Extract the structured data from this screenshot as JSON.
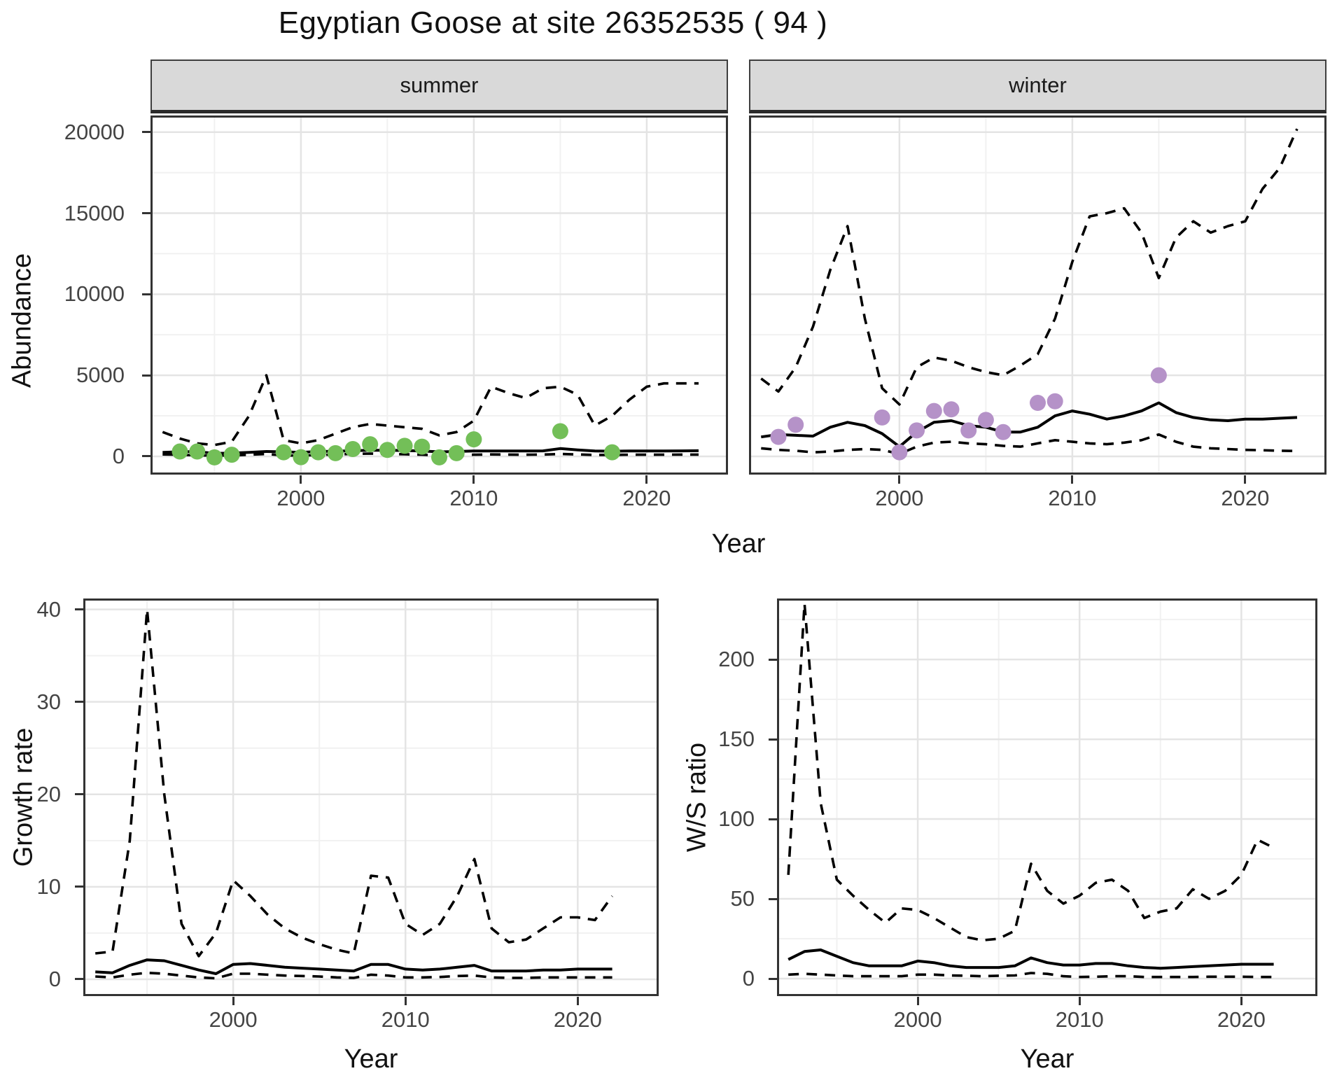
{
  "title": "Egyptian Goose at site 26352535 ( 94 )",
  "species": "Egyptian Goose",
  "site_id": "26352535",
  "title_suffix_number": "94",
  "facets": {
    "summer": "summer",
    "winter": "winter"
  },
  "axes": {
    "x_label": "Year",
    "abundance_label": "Abundance",
    "growth_label": "Growth rate",
    "ws_label": "W/S ratio"
  },
  "colors": {
    "summer_points": "#73bf58",
    "winter_points": "#b592c8",
    "line": "#000000",
    "strip_bg": "#d9d9d9",
    "grid_major": "#e4e4e4",
    "grid_minor": "#f1f1f1",
    "panel_border": "#333333",
    "axis_text": "#444444"
  },
  "chart_data": [
    {
      "id": "abundance_summer",
      "type": "line+scatter",
      "title": "summer",
      "xlabel": "Year",
      "ylabel": "Abundance",
      "xlim": [
        1991.3,
        2024.7
      ],
      "ylim": [
        -1124,
        21023
      ],
      "x_ticks": [
        2000,
        2010,
        2020
      ],
      "x_minor": [
        1995,
        2005,
        2015
      ],
      "y_ticks": [
        0,
        5000,
        10000,
        15000,
        20000
      ],
      "y_minor": [
        2500,
        7500,
        12500,
        17500
      ],
      "grid": true,
      "legend": "none",
      "x": [
        1992,
        1993,
        1994,
        1995,
        1996,
        1997,
        1998,
        1999,
        2000,
        2001,
        2002,
        2003,
        2004,
        2005,
        2006,
        2007,
        2008,
        2009,
        2010,
        2011,
        2012,
        2013,
        2014,
        2015,
        2016,
        2017,
        2018,
        2019,
        2020,
        2021,
        2022,
        2023
      ],
      "series": [
        {
          "name": "fit",
          "style": "solid",
          "values": [
            250,
            280,
            300,
            180,
            200,
            250,
            300,
            280,
            250,
            300,
            320,
            350,
            380,
            380,
            360,
            330,
            280,
            300,
            330,
            330,
            330,
            330,
            340,
            480,
            400,
            330,
            320,
            330,
            330,
            330,
            340,
            350
          ]
        },
        {
          "name": "upper_ci",
          "style": "dashed",
          "values": [
            1500,
            1100,
            800,
            700,
            900,
            2500,
            5000,
            1000,
            800,
            1000,
            1400,
            1800,
            2000,
            1900,
            1800,
            1700,
            1300,
            1500,
            2200,
            4300,
            3900,
            3600,
            4200,
            4300,
            3800,
            1900,
            2500,
            3500,
            4300,
            4500,
            4500,
            4500
          ]
        },
        {
          "name": "lower_ci",
          "style": "dashed",
          "values": [
            120,
            100,
            60,
            50,
            60,
            100,
            150,
            60,
            50,
            80,
            120,
            150,
            170,
            150,
            130,
            100,
            60,
            80,
            100,
            120,
            110,
            100,
            110,
            150,
            120,
            90,
            90,
            100,
            100,
            100,
            110,
            110
          ]
        }
      ],
      "points": [
        [
          1993,
          300
        ],
        [
          1994,
          300
        ],
        [
          1995,
          -60
        ],
        [
          1996,
          100
        ],
        [
          1999,
          250
        ],
        [
          2000,
          -50
        ],
        [
          2001,
          250
        ],
        [
          2002,
          200
        ],
        [
          2003,
          450
        ],
        [
          2004,
          750
        ],
        [
          2005,
          400
        ],
        [
          2006,
          650
        ],
        [
          2007,
          600
        ],
        [
          2008,
          -60
        ],
        [
          2009,
          200
        ],
        [
          2010,
          1050
        ],
        [
          2015,
          1550
        ],
        [
          2018,
          250
        ]
      ],
      "point_color": "#73bf58"
    },
    {
      "id": "abundance_winter",
      "type": "line+scatter",
      "title": "winter",
      "xlabel": "Year",
      "ylabel": "Abundance",
      "xlim": [
        1991.3,
        2024.7
      ],
      "ylim": [
        -1124,
        21023
      ],
      "x_ticks": [
        2000,
        2010,
        2020
      ],
      "x_minor": [
        1995,
        2005,
        2015
      ],
      "y_ticks": [
        0,
        5000,
        10000,
        15000,
        20000
      ],
      "y_minor": [
        2500,
        7500,
        12500,
        17500
      ],
      "grid": true,
      "legend": "none",
      "x": [
        1992,
        1993,
        1994,
        1995,
        1996,
        1997,
        1998,
        1999,
        2000,
        2001,
        2002,
        2003,
        2004,
        2005,
        2006,
        2007,
        2008,
        2009,
        2010,
        2011,
        2012,
        2013,
        2014,
        2015,
        2016,
        2017,
        2018,
        2019,
        2020,
        2021,
        2022,
        2023
      ],
      "series": [
        {
          "name": "fit",
          "style": "solid",
          "values": [
            1200,
            1350,
            1300,
            1250,
            1800,
            2100,
            1900,
            1400,
            600,
            1500,
            2100,
            2200,
            1900,
            1800,
            1500,
            1500,
            1800,
            2500,
            2800,
            2600,
            2300,
            2500,
            2800,
            3300,
            2700,
            2400,
            2250,
            2200,
            2300,
            2300,
            2350,
            2400
          ]
        },
        {
          "name": "upper_ci",
          "style": "dashed",
          "values": [
            4800,
            4000,
            5500,
            8000,
            11500,
            14200,
            8500,
            4200,
            3200,
            5500,
            6100,
            5900,
            5500,
            5200,
            5000,
            5600,
            6300,
            8500,
            12000,
            14800,
            15000,
            15300,
            13800,
            11000,
            13500,
            14500,
            13800,
            14200,
            14500,
            16500,
            17800,
            20200
          ]
        },
        {
          "name": "lower_ci",
          "style": "dashed",
          "values": [
            500,
            400,
            350,
            250,
            300,
            400,
            450,
            400,
            150,
            600,
            850,
            900,
            800,
            750,
            650,
            600,
            800,
            1000,
            900,
            800,
            750,
            850,
            1000,
            1350,
            900,
            600,
            500,
            450,
            400,
            380,
            350,
            330
          ]
        }
      ],
      "points": [
        [
          1993,
          1200
        ],
        [
          1994,
          1950
        ],
        [
          1999,
          2400
        ],
        [
          2000,
          250
        ],
        [
          2001,
          1600
        ],
        [
          2002,
          2800
        ],
        [
          2003,
          2900
        ],
        [
          2004,
          1600
        ],
        [
          2005,
          2250
        ],
        [
          2006,
          1500
        ],
        [
          2008,
          3300
        ],
        [
          2009,
          3400
        ],
        [
          2015,
          5000
        ]
      ],
      "point_color": "#b592c8"
    },
    {
      "id": "growth",
      "type": "line",
      "title": "Growth rate",
      "xlabel": "Year",
      "ylabel": "Growth rate",
      "xlim": [
        1991.3,
        2024.7
      ],
      "ylim": [
        -1.82,
        41.18
      ],
      "x_ticks": [
        2000,
        2010,
        2020
      ],
      "x_minor": [
        1995,
        2005,
        2015
      ],
      "y_ticks": [
        0,
        10,
        20,
        30,
        40
      ],
      "y_minor": [
        5,
        15,
        25,
        35
      ],
      "grid": true,
      "legend": "none",
      "x": [
        1992,
        1993,
        1994,
        1995,
        1996,
        1997,
        1998,
        1999,
        2000,
        2001,
        2002,
        2003,
        2004,
        2005,
        2006,
        2007,
        2008,
        2009,
        2010,
        2011,
        2012,
        2013,
        2014,
        2015,
        2016,
        2017,
        2018,
        2019,
        2020,
        2021,
        2022
      ],
      "series": [
        {
          "name": "fit",
          "style": "solid",
          "values": [
            0.8,
            0.7,
            1.5,
            2.1,
            2.0,
            1.5,
            1.0,
            0.6,
            1.6,
            1.7,
            1.5,
            1.3,
            1.2,
            1.1,
            1.0,
            0.9,
            1.6,
            1.6,
            1.1,
            1.0,
            1.1,
            1.3,
            1.5,
            0.9,
            0.9,
            0.9,
            1.0,
            1.0,
            1.1,
            1.1,
            1.1
          ]
        },
        {
          "name": "upper_ci",
          "style": "dashed",
          "values": [
            2.8,
            3.0,
            15,
            40,
            20,
            6,
            2.5,
            5,
            10.7,
            9,
            7,
            5.5,
            4.5,
            3.8,
            3.2,
            2.8,
            11.2,
            11,
            6,
            4.8,
            6,
            9,
            13,
            5.5,
            4,
            4.3,
            5.5,
            6.7,
            6.7,
            6.4,
            9
          ]
        },
        {
          "name": "lower_ci",
          "style": "dashed",
          "values": [
            0.3,
            0.2,
            0.5,
            0.7,
            0.6,
            0.4,
            0.2,
            0.1,
            0.6,
            0.6,
            0.5,
            0.4,
            0.35,
            0.3,
            0.2,
            0.15,
            0.5,
            0.4,
            0.2,
            0.2,
            0.25,
            0.35,
            0.4,
            0.2,
            0.15,
            0.15,
            0.2,
            0.2,
            0.2,
            0.2,
            0.2
          ]
        }
      ],
      "points": [],
      "point_color": null
    },
    {
      "id": "ws",
      "type": "line",
      "title": "W/S ratio",
      "xlabel": "Year",
      "ylabel": "W/S ratio",
      "xlim": [
        1991.3,
        2024.7
      ],
      "ylim": [
        -10.96,
        238.2
      ],
      "x_ticks": [
        2000,
        2010,
        2020
      ],
      "x_minor": [
        1995,
        2005,
        2015
      ],
      "y_ticks": [
        0,
        50,
        100,
        150,
        200
      ],
      "y_minor": [
        25,
        75,
        125,
        175,
        225
      ],
      "grid": true,
      "legend": "none",
      "x": [
        1992,
        1993,
        1994,
        1995,
        1996,
        1997,
        1998,
        1999,
        2000,
        2001,
        2002,
        2003,
        2004,
        2005,
        2006,
        2007,
        2008,
        2009,
        2010,
        2011,
        2012,
        2013,
        2014,
        2015,
        2016,
        2017,
        2018,
        2019,
        2020,
        2021,
        2022
      ],
      "series": [
        {
          "name": "fit",
          "style": "solid",
          "values": [
            12,
            17,
            18,
            14,
            10,
            8,
            8,
            8,
            11,
            10,
            8,
            7,
            7,
            7,
            8,
            13,
            10,
            8.5,
            8.5,
            9.5,
            9.5,
            8,
            7,
            6.5,
            7,
            7.5,
            8,
            8.5,
            9,
            9,
            9
          ]
        },
        {
          "name": "upper_ci",
          "style": "dashed",
          "values": [
            65,
            235,
            110,
            62,
            52,
            43,
            35,
            44,
            43,
            38,
            32,
            26,
            24,
            25,
            30,
            72,
            55,
            47,
            52,
            60,
            62,
            55,
            38,
            42,
            44,
            56,
            50,
            55,
            65,
            87,
            82
          ]
        },
        {
          "name": "lower_ci",
          "style": "dashed",
          "values": [
            2.5,
            3,
            2.5,
            2,
            1.5,
            1.5,
            1.5,
            1.5,
            2.5,
            2.5,
            2,
            1.8,
            1.5,
            1.8,
            2,
            3.5,
            3,
            1.5,
            1,
            1.2,
            1.5,
            1.5,
            1,
            1,
            1,
            1,
            1.2,
            1.2,
            1.2,
            1,
            1
          ]
        }
      ],
      "points": [],
      "point_color": null
    }
  ]
}
